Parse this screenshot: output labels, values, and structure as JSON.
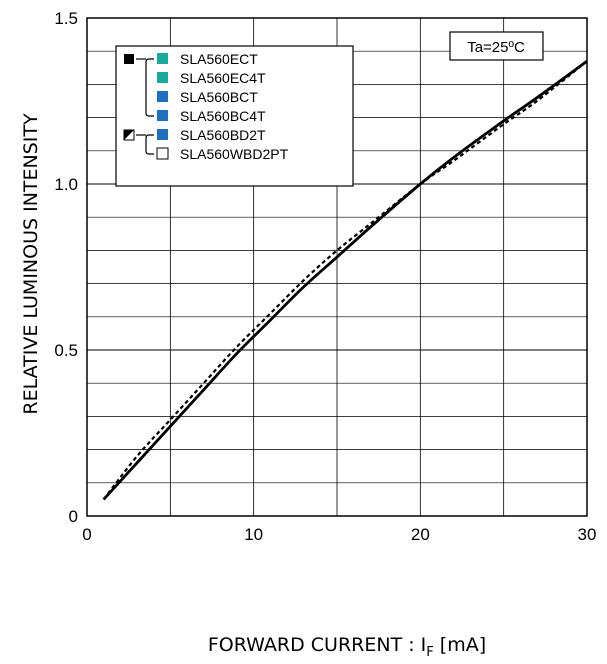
{
  "chart_data": {
    "type": "line",
    "xlabel": "FORWARD CURRENT : I",
    "xlabel_sub": "F",
    "xlabel_unit": " [mA]",
    "ylabel": "RELATIVE LUMINOUS INTENSITY",
    "xlim": [
      0,
      30
    ],
    "ylim": [
      0,
      1.5
    ],
    "x_ticks": [
      {
        "value": 0,
        "label": "0"
      },
      {
        "value": 10,
        "label": "10"
      },
      {
        "value": 20,
        "label": "20"
      },
      {
        "value": 30,
        "label": "30"
      }
    ],
    "y_ticks": [
      {
        "value": 0,
        "label": "0"
      },
      {
        "value": 0.5,
        "label": "0.5"
      },
      {
        "value": 1.0,
        "label": "1.0"
      },
      {
        "value": 1.5,
        "label": "1.5"
      }
    ],
    "grid": true,
    "x_minor_step": 5,
    "y_minor_step": 0.1,
    "annotation": "Ta=25ºC",
    "legend": {
      "position": "top-left",
      "groups": [
        {
          "style": "solid",
          "marker": "black-square",
          "items": [
            {
              "name": "SLA560ECT",
              "color": "#1aa89a"
            },
            {
              "name": "SLA560EC4T",
              "color": "#1aa89a"
            },
            {
              "name": "SLA560BCT",
              "color": "#1e6fc0"
            },
            {
              "name": "SLA560BC4T",
              "color": "#1e6fc0"
            }
          ]
        },
        {
          "style": "dashed",
          "marker": "half-square",
          "items": [
            {
              "name": "SLA560BD2T",
              "color": "#1e6fc0"
            },
            {
              "name": "SLA560WBD2PT",
              "color": "#ffffff"
            }
          ]
        }
      ]
    },
    "series": [
      {
        "style": "solid",
        "x": [
          1,
          3,
          5,
          7,
          9,
          11,
          13,
          15,
          17,
          20,
          22,
          25,
          27,
          30
        ],
        "y": [
          0.05,
          0.16,
          0.27,
          0.38,
          0.49,
          0.59,
          0.69,
          0.78,
          0.87,
          1.0,
          1.08,
          1.19,
          1.26,
          1.37
        ]
      },
      {
        "style": "dashed",
        "x": [
          1,
          3,
          5,
          7,
          9,
          11,
          13,
          15,
          17,
          20,
          22,
          25,
          27,
          30
        ],
        "y": [
          0.05,
          0.18,
          0.29,
          0.4,
          0.51,
          0.61,
          0.71,
          0.8,
          0.88,
          1.0,
          1.07,
          1.18,
          1.25,
          1.37
        ]
      }
    ]
  }
}
